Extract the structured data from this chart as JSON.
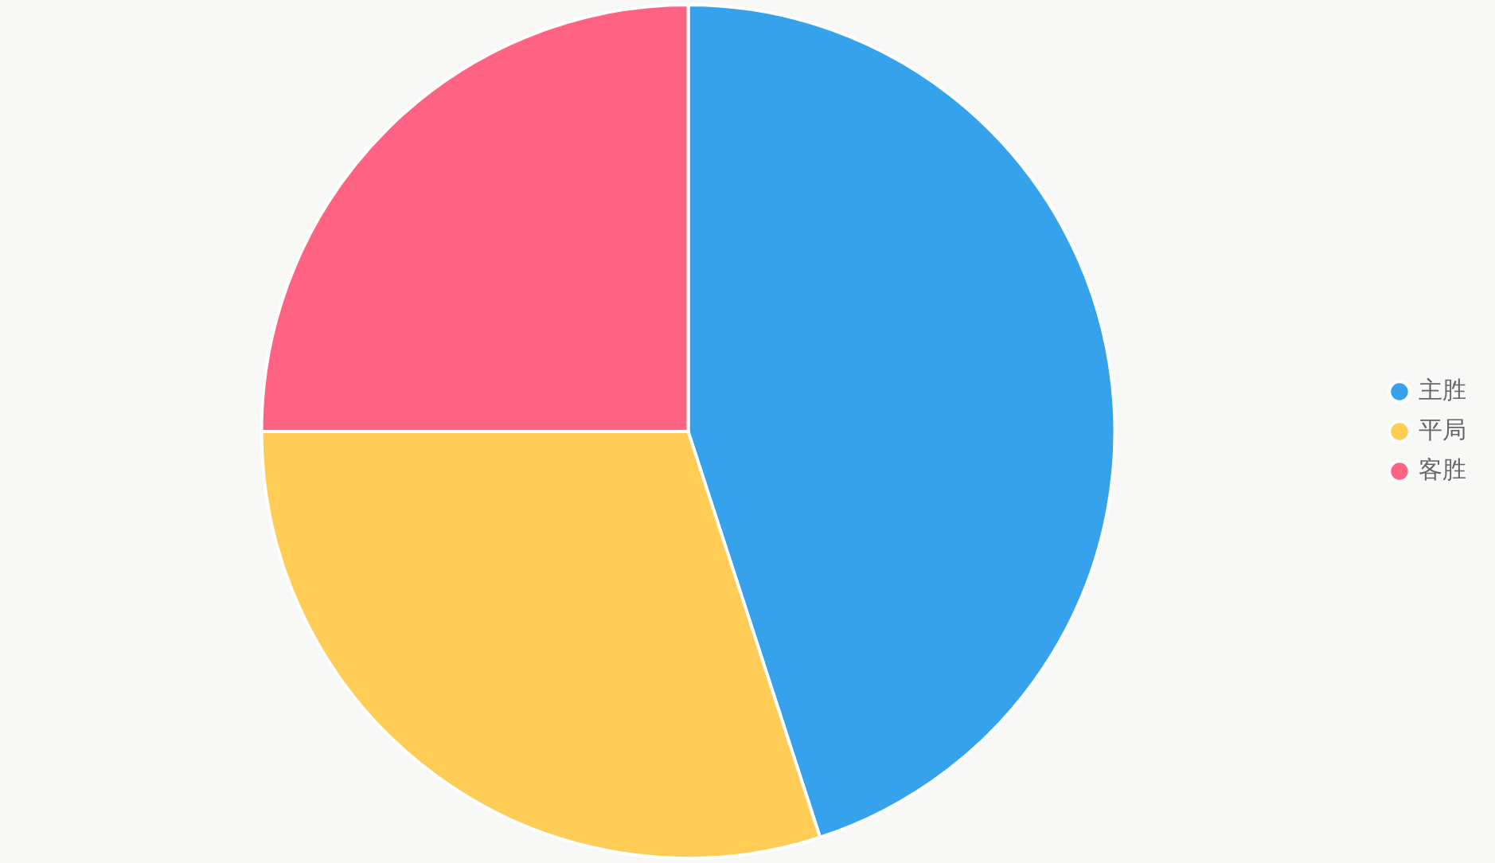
{
  "chart_data": {
    "type": "pie",
    "categories": [
      "主胜",
      "平局",
      "客胜"
    ],
    "values": [
      45,
      30,
      25
    ],
    "colors": [
      "#36a2eb",
      "#ffcd56",
      "#ff6384"
    ],
    "legend": "right"
  }
}
